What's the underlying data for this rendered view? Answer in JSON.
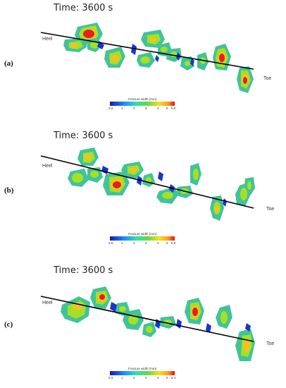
{
  "panels": [
    {
      "label": "(a)",
      "time_title": "Time: 3600 s",
      "heel_label": "Heel",
      "toe_label": "Toe",
      "colorbar": {
        "title": "Fracture width (mm)",
        "ticks": [
          "0.2",
          "1",
          "2",
          "3",
          "4",
          "5",
          "5.6"
        ]
      }
    },
    {
      "label": "(b)",
      "time_title": "Time: 3600 s",
      "heel_label": "Heel",
      "toe_label": "Toe",
      "colorbar": {
        "title": "Fracture width (mm)",
        "ticks": [
          "0.5",
          "1",
          "2",
          "3",
          "4",
          "5",
          "5.8"
        ]
      }
    },
    {
      "label": "(c)",
      "time_title": "Time: 3600 s",
      "heel_label": "Heel",
      "toe_label": "Toe",
      "colorbar": {
        "title": "Fracture width (mm)",
        "ticks": [
          "0.3",
          "1",
          "2",
          "3",
          "4",
          "5",
          "5.4"
        ]
      }
    }
  ],
  "colors": {
    "outer": "#41c39a",
    "mid": "#a6e025",
    "core": "#f2c320",
    "hot": "#e5201c",
    "thin": "#1a36c8"
  }
}
